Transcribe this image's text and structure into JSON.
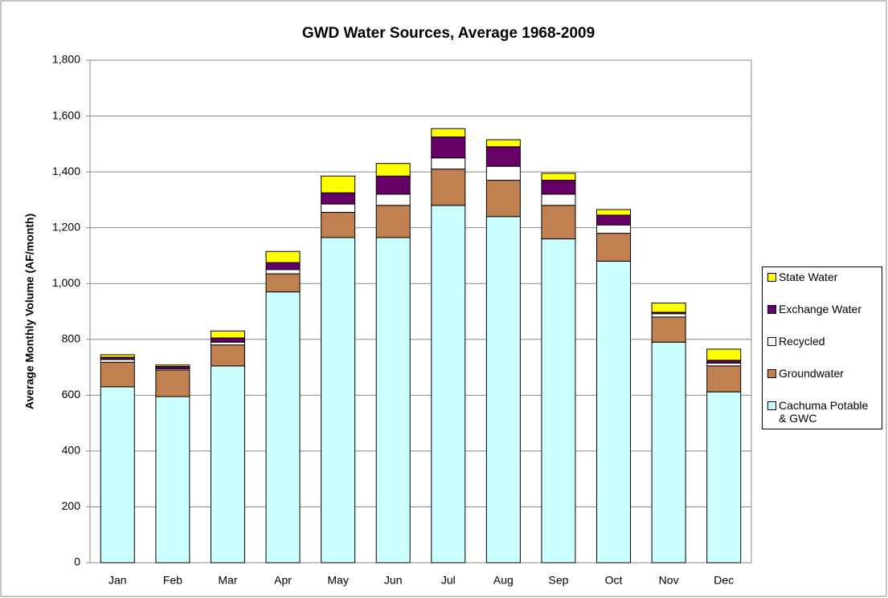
{
  "chart_data": {
    "type": "stacked_bar",
    "title": "GWD Water Sources, Average 1968-2009",
    "y_label": "Average Monthly Volume (AF/month)",
    "categories": [
      "Jan",
      "Feb",
      "Mar",
      "Apr",
      "May",
      "Jun",
      "Jul",
      "Aug",
      "Sep",
      "Oct",
      "Nov",
      "Dec"
    ],
    "series": [
      {
        "name": "Cachuma Potable & GWC",
        "color": "#ccffff",
        "values": [
          630,
          595,
          705,
          970,
          1165,
          1165,
          1280,
          1240,
          1160,
          1080,
          790,
          612
        ]
      },
      {
        "name": "Groundwater",
        "color": "#c0804f",
        "values": [
          88,
          95,
          75,
          65,
          90,
          115,
          130,
          130,
          120,
          100,
          90,
          93
        ]
      },
      {
        "name": "Recycled",
        "color": "#ffffff",
        "values": [
          10,
          5,
          10,
          15,
          30,
          40,
          40,
          50,
          40,
          30,
          12,
          10
        ]
      },
      {
        "name": "Exchange Water",
        "color": "#660066",
        "values": [
          8,
          8,
          15,
          25,
          40,
          65,
          75,
          70,
          50,
          35,
          5,
          10
        ]
      },
      {
        "name": "State Water",
        "color": "#ffff00",
        "values": [
          9,
          5,
          25,
          40,
          60,
          45,
          30,
          25,
          25,
          20,
          33,
          40
        ]
      }
    ],
    "ylim": [
      0,
      1800
    ],
    "yticks": [
      0,
      200,
      400,
      600,
      800,
      {
        "value": 1000,
        "label": "1,000"
      },
      {
        "value": 1200,
        "label": "1,200"
      },
      {
        "value": 1400,
        "label": "1,400"
      },
      {
        "value": 1600,
        "label": "1,600"
      },
      {
        "value": 1800,
        "label": "1,800"
      }
    ],
    "grid": true,
    "legend": "right"
  }
}
